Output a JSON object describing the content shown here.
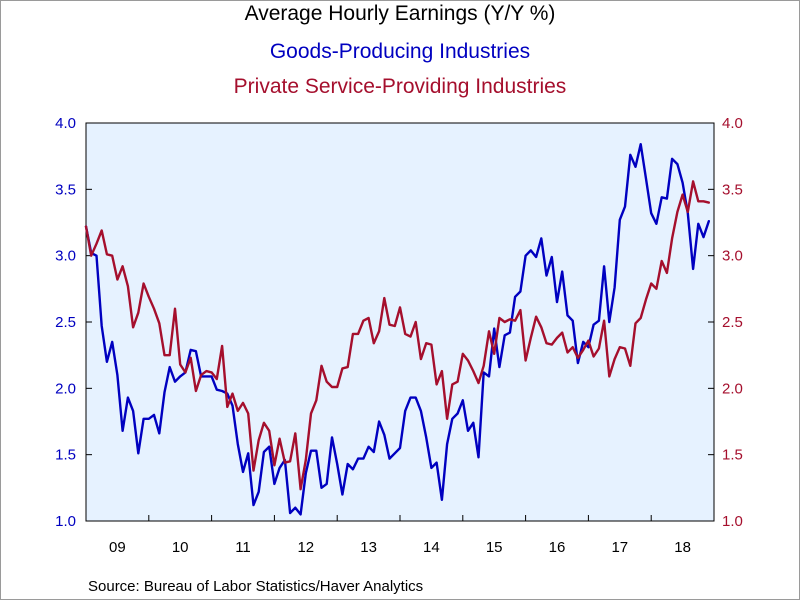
{
  "chart_data": {
    "type": "line",
    "title": "Average Hourly Earnings (Y/Y %)",
    "series": [
      {
        "name": "Goods-Producing Industries",
        "color": "#0000c0",
        "axis": "left",
        "values": [
          3.22,
          3.02,
          3.0,
          2.47,
          2.2,
          2.35,
          2.1,
          1.68,
          1.93,
          1.83,
          1.51,
          1.77,
          1.77,
          1.8,
          1.66,
          1.97,
          2.16,
          2.05,
          2.09,
          2.12,
          2.29,
          2.28,
          2.09,
          2.09,
          2.09,
          1.99,
          1.98,
          1.96,
          1.87,
          1.58,
          1.37,
          1.51,
          1.12,
          1.22,
          1.52,
          1.56,
          1.28,
          1.4,
          1.46,
          1.06,
          1.1,
          1.05,
          1.36,
          1.53,
          1.53,
          1.25,
          1.28,
          1.63,
          1.43,
          1.2,
          1.43,
          1.39,
          1.47,
          1.47,
          1.56,
          1.52,
          1.75,
          1.65,
          1.47,
          1.51,
          1.55,
          1.83,
          1.93,
          1.93,
          1.83,
          1.63,
          1.4,
          1.44,
          1.16,
          1.58,
          1.77,
          1.81,
          1.91,
          1.68,
          1.74,
          1.48,
          2.12,
          2.09,
          2.45,
          2.16,
          2.4,
          2.42,
          2.69,
          2.73,
          3.0,
          3.04,
          2.99,
          3.13,
          2.85,
          2.99,
          2.65,
          2.88,
          2.55,
          2.51,
          2.19,
          2.35,
          2.31,
          2.48,
          2.51,
          2.92,
          2.5,
          2.76,
          3.27,
          3.37,
          3.76,
          3.67,
          3.84,
          3.58,
          3.32,
          3.24,
          3.44,
          3.43,
          3.73,
          3.69,
          3.55,
          3.32,
          2.9,
          3.24,
          3.14,
          3.26
        ]
      },
      {
        "name": "Private Service-Providing Industries",
        "color": "#a50f2d",
        "axis": "right",
        "values": [
          3.22,
          3.0,
          3.09,
          3.19,
          3.01,
          3.0,
          2.82,
          2.92,
          2.77,
          2.46,
          2.57,
          2.79,
          2.69,
          2.6,
          2.49,
          2.25,
          2.25,
          2.6,
          2.18,
          2.12,
          2.23,
          1.98,
          2.1,
          2.13,
          2.12,
          2.07,
          2.32,
          1.86,
          1.96,
          1.83,
          1.89,
          1.81,
          1.38,
          1.61,
          1.74,
          1.68,
          1.42,
          1.62,
          1.44,
          1.45,
          1.66,
          1.24,
          1.46,
          1.81,
          1.91,
          2.17,
          2.05,
          2.01,
          2.01,
          2.15,
          2.16,
          2.41,
          2.41,
          2.51,
          2.53,
          2.34,
          2.43,
          2.68,
          2.48,
          2.47,
          2.61,
          2.41,
          2.39,
          2.5,
          2.22,
          2.34,
          2.33,
          2.03,
          2.13,
          1.77,
          2.03,
          2.05,
          2.26,
          2.21,
          2.13,
          2.04,
          2.17,
          2.43,
          2.26,
          2.53,
          2.5,
          2.52,
          2.51,
          2.59,
          2.21,
          2.38,
          2.54,
          2.46,
          2.34,
          2.33,
          2.38,
          2.42,
          2.27,
          2.31,
          2.23,
          2.29,
          2.36,
          2.24,
          2.3,
          2.51,
          2.09,
          2.22,
          2.31,
          2.3,
          2.17,
          2.49,
          2.53,
          2.67,
          2.79,
          2.75,
          2.96,
          2.87,
          3.13,
          3.33,
          3.46,
          3.33,
          3.56,
          3.41,
          3.41,
          3.4
        ]
      }
    ],
    "x_start": 2009.0,
    "x_step_months": 1,
    "x_range": [
      2009.0,
      2019.0
    ],
    "x_tick_labels": [
      "09",
      "10",
      "11",
      "12",
      "13",
      "14",
      "15",
      "16",
      "17",
      "18"
    ],
    "ylim_left": [
      1.0,
      4.0
    ],
    "ylim_right": [
      1.0,
      4.0
    ],
    "y_ticks": [
      1.0,
      1.5,
      2.0,
      2.5,
      3.0,
      3.5,
      4.0
    ],
    "y_tick_labels": [
      "1.0",
      "1.5",
      "2.0",
      "2.5",
      "3.0",
      "3.5",
      "4.0"
    ],
    "plot_background": "#e6f2ff",
    "grid": false,
    "source": "Source:  Bureau of Labor Statistics/Haver Analytics"
  }
}
